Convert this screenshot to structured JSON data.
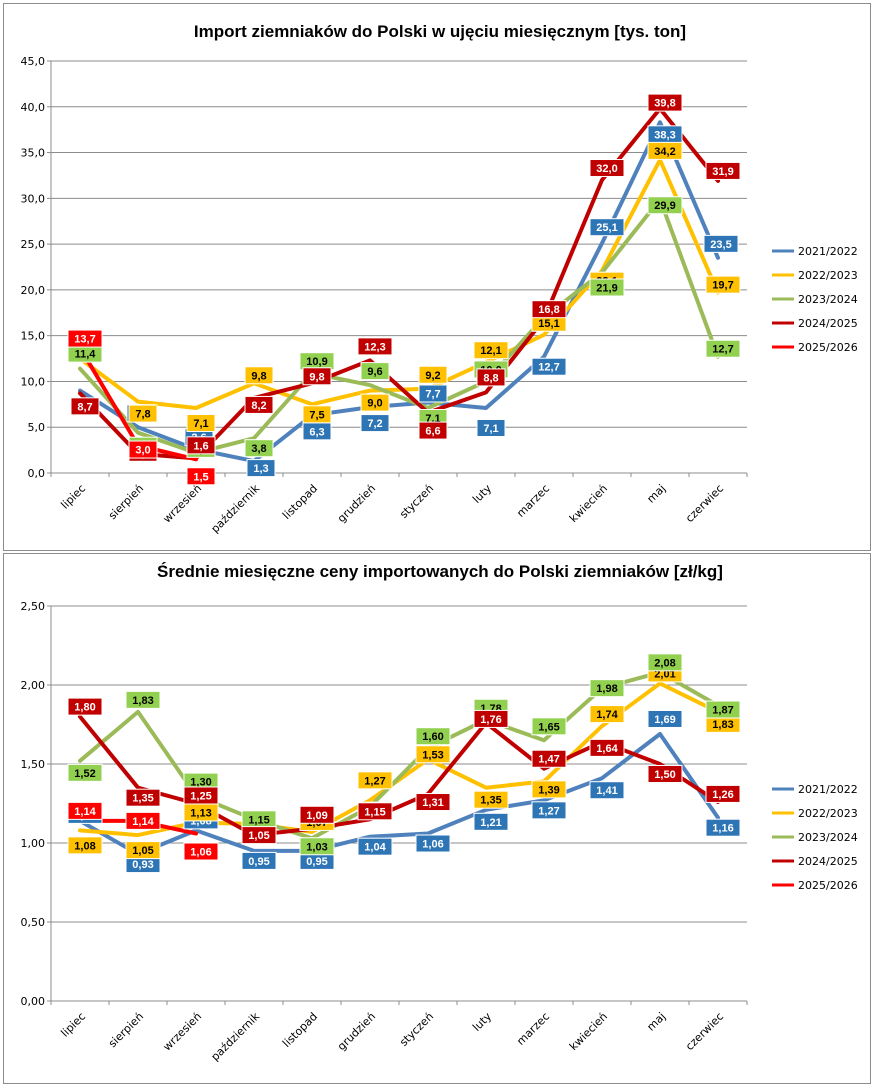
{
  "chart_data": [
    {
      "type": "line",
      "title": "Import ziemniaków  do Polski  w ujęciu miesięcznym [tys. ton]",
      "categories": [
        "lipiec",
        "sierpień",
        "wrzesień",
        "październik",
        "listopad",
        "grudzień",
        "styczeń",
        "luty",
        "marzec",
        "kwiecień",
        "maj",
        "czerwiec"
      ],
      "ylim": [
        0,
        45
      ],
      "yticks": [
        0,
        5,
        10,
        15,
        20,
        25,
        30,
        35,
        40,
        45
      ],
      "ytick_labels": [
        "0,0",
        "5,0",
        "10,0",
        "15,0",
        "20,0",
        "25,0",
        "30,0",
        "35,0",
        "40,0",
        "45,0"
      ],
      "grid": true,
      "legend": "right",
      "series": [
        {
          "name": "2021/2022",
          "color": "#4f81bd",
          "label_color": "#2e75b6",
          "label_text": "#ffffff",
          "values": [
            9.0,
            5.0,
            2.6,
            1.3,
            6.3,
            7.2,
            7.7,
            7.1,
            12.7,
            25.1,
            38.3,
            23.5
          ],
          "labels": [
            "9,0",
            "5,0",
            "2,6",
            "1,3",
            "6,3",
            "7,2",
            "7,7",
            "7,1",
            "12,7",
            "25,1",
            "38,3",
            "23,5"
          ]
        },
        {
          "name": "2022/2023",
          "color": "#ffc000",
          "label_color": "#ffc000",
          "label_text": "#000000",
          "values": [
            12.5,
            7.8,
            7.1,
            9.8,
            7.5,
            9.0,
            9.2,
            12.1,
            15.1,
            22.1,
            34.2,
            19.7
          ],
          "labels": [
            "12,5",
            "7,8",
            "7,1",
            "9,8",
            "7,5",
            "9,0",
            "9,2",
            "12,1",
            "15,1",
            "22,1",
            "34,2",
            "19,7"
          ]
        },
        {
          "name": "2023/2024",
          "color": "#9bbb59",
          "label_color": "#92d050",
          "label_text": "#000000",
          "values": [
            11.4,
            4.4,
            2.2,
            3.8,
            10.9,
            9.6,
            7.1,
            10.0,
            17.0,
            21.9,
            29.9,
            12.7
          ],
          "labels": [
            "11,4",
            "4,4",
            "2,2",
            "3,8",
            "10,9",
            "9,6",
            "7,1",
            "10,0",
            "",
            "21,9",
            "29,9",
            "12,7"
          ]
        },
        {
          "name": "2024/2025",
          "color": "#c00000",
          "label_color": "#c00000",
          "label_text": "#ffffff",
          "values": [
            8.7,
            2.1,
            1.6,
            8.2,
            9.8,
            12.3,
            6.6,
            8.8,
            16.8,
            32.0,
            39.8,
            31.9
          ],
          "labels": [
            "8,7",
            "2,1",
            "1,6",
            "8,2",
            "9,8",
            "12,3",
            "6,6",
            "8,8",
            "16,8",
            "32,0",
            "39,8",
            "31,9"
          ]
        },
        {
          "name": "2025/2026",
          "color": "#ff0000",
          "label_color": "#ff0000",
          "label_text": "#ffffff",
          "values": [
            13.7,
            3.0,
            1.5,
            null,
            null,
            null,
            null,
            null,
            null,
            null,
            null,
            null
          ],
          "labels": [
            "13,7",
            "3,0",
            "1,5",
            "",
            "",
            "",
            "",
            "",
            "",
            "",
            "",
            ""
          ]
        }
      ]
    },
    {
      "type": "line",
      "title": "Średnie miesięczne ceny importowanych do Polski ziemniaków  [zł/kg]",
      "categories": [
        "lipiec",
        "sierpień",
        "wrzesień",
        "październik",
        "listopad",
        "grudzień",
        "styczeń",
        "luty",
        "marzec",
        "kwiecień",
        "maj",
        "czerwiec"
      ],
      "ylim": [
        0,
        2.5
      ],
      "yticks": [
        0,
        0.5,
        1.0,
        1.5,
        2.0,
        2.5
      ],
      "ytick_labels": [
        "0,00",
        "0,50",
        "1,00",
        "1,50",
        "2,00",
        "2,50"
      ],
      "grid": true,
      "legend": "right",
      "series": [
        {
          "name": "2021/2022",
          "color": "#4f81bd",
          "label_color": "#2e75b6",
          "label_text": "#ffffff",
          "values": [
            1.14,
            0.93,
            1.08,
            0.95,
            0.95,
            1.04,
            1.06,
            1.21,
            1.27,
            1.41,
            1.69,
            1.16
          ],
          "labels": [
            "1,14",
            "0,93",
            "1,08",
            "0,95",
            "0,95",
            "1,04",
            "1,06",
            "1,21",
            "1,27",
            "1,41",
            "1,69",
            "1,16"
          ]
        },
        {
          "name": "2022/2023",
          "color": "#ffc000",
          "label_color": "#ffc000",
          "label_text": "#000000",
          "values": [
            1.08,
            1.05,
            1.13,
            1.12,
            1.07,
            1.27,
            1.53,
            1.35,
            1.39,
            1.74,
            2.01,
            1.83
          ],
          "labels": [
            "1,08",
            "1,05",
            "1,13",
            "1,12",
            "1,07",
            "1,27",
            "1,53",
            "1,35",
            "1,39",
            "1,74",
            "2,01",
            "1,83"
          ]
        },
        {
          "name": "2023/2024",
          "color": "#9bbb59",
          "label_color": "#92d050",
          "label_text": "#000000",
          "values": [
            1.52,
            1.83,
            1.3,
            1.15,
            1.03,
            1.23,
            1.6,
            1.78,
            1.65,
            1.98,
            2.08,
            1.87
          ],
          "labels": [
            "1,52",
            "1,83",
            "1,30",
            "1,15",
            "1,03",
            "1,23",
            "1,60",
            "1,78",
            "1,65",
            "1,98",
            "2,08",
            "1,87"
          ]
        },
        {
          "name": "2024/2025",
          "color": "#c00000",
          "label_color": "#c00000",
          "label_text": "#ffffff",
          "values": [
            1.8,
            1.35,
            1.25,
            1.05,
            1.09,
            1.15,
            1.31,
            1.76,
            1.47,
            1.64,
            1.5,
            1.26
          ],
          "labels": [
            "1,80",
            "1,35",
            "1,25",
            "1,05",
            "1,09",
            "1,15",
            "1,31",
            "1,76",
            "1,47",
            "1,64",
            "1,50",
            "1,26"
          ]
        },
        {
          "name": "2025/2026",
          "color": "#ff0000",
          "label_color": "#ff0000",
          "label_text": "#ffffff",
          "values": [
            1.14,
            1.14,
            1.06,
            null,
            null,
            null,
            null,
            null,
            null,
            null,
            null,
            null
          ],
          "labels": [
            "1,14",
            "1,14",
            "1,06",
            "",
            "",
            "",
            "",
            "",
            "",
            "",
            "",
            ""
          ]
        }
      ]
    }
  ]
}
